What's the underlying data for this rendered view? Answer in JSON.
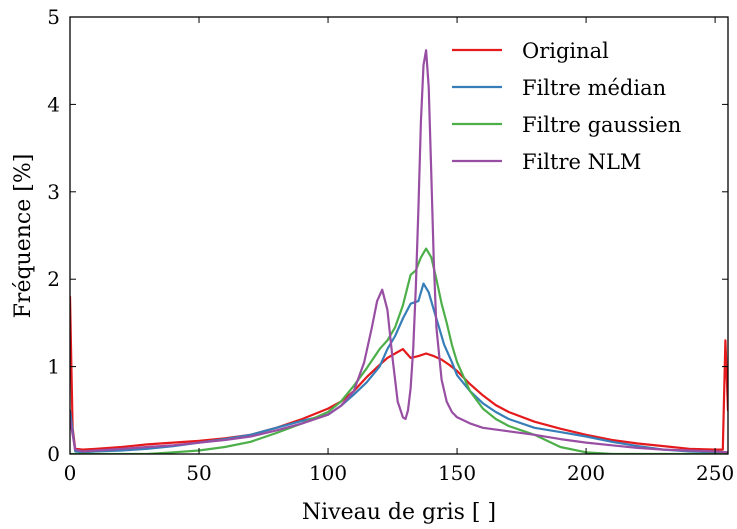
{
  "chart_data": {
    "type": "line",
    "xlabel": "Niveau de gris [ ]",
    "ylabel": "Fréquence [%]",
    "xlim": [
      0,
      255
    ],
    "ylim": [
      0,
      5
    ],
    "xticks": [
      0,
      50,
      100,
      150,
      200,
      250
    ],
    "yticks": [
      0,
      1,
      2,
      3,
      4,
      5
    ],
    "grid": false,
    "legend_position": "top-right",
    "series": [
      {
        "name": "Original",
        "color": "#e41a1c",
        "x": [
          0,
          1,
          2,
          5,
          10,
          20,
          30,
          40,
          50,
          60,
          70,
          80,
          90,
          100,
          105,
          110,
          115,
          120,
          123,
          126,
          129,
          132,
          135,
          138,
          141,
          144,
          147,
          150,
          155,
          160,
          165,
          170,
          180,
          190,
          200,
          210,
          220,
          230,
          240,
          250,
          253,
          254,
          255
        ],
        "y": [
          1.8,
          0.3,
          0.06,
          0.05,
          0.06,
          0.08,
          0.11,
          0.13,
          0.15,
          0.18,
          0.22,
          0.3,
          0.4,
          0.52,
          0.6,
          0.72,
          0.88,
          1.02,
          1.1,
          1.15,
          1.2,
          1.1,
          1.12,
          1.15,
          1.12,
          1.08,
          1.02,
          0.95,
          0.8,
          0.67,
          0.56,
          0.48,
          0.37,
          0.29,
          0.22,
          0.16,
          0.12,
          0.09,
          0.06,
          0.05,
          0.05,
          1.3,
          0.5
        ]
      },
      {
        "name": "Filtre médian",
        "color": "#377eb8",
        "x": [
          0,
          2,
          5,
          10,
          20,
          30,
          40,
          50,
          60,
          70,
          80,
          90,
          100,
          105,
          110,
          115,
          120,
          123,
          126,
          129,
          132,
          135,
          137,
          139,
          141,
          143,
          145,
          148,
          150,
          155,
          160,
          165,
          170,
          180,
          190,
          200,
          210,
          220,
          230,
          240,
          250,
          255
        ],
        "y": [
          0.5,
          0.03,
          0.02,
          0.03,
          0.04,
          0.06,
          0.09,
          0.13,
          0.17,
          0.22,
          0.3,
          0.38,
          0.45,
          0.55,
          0.68,
          0.82,
          1.0,
          1.2,
          1.35,
          1.55,
          1.72,
          1.75,
          1.95,
          1.85,
          1.65,
          1.45,
          1.25,
          1.05,
          0.9,
          0.72,
          0.58,
          0.48,
          0.4,
          0.3,
          0.25,
          0.2,
          0.14,
          0.09,
          0.05,
          0.03,
          0.02,
          0.02
        ]
      },
      {
        "name": "Filtre gaussien",
        "color": "#4daf4a",
        "x": [
          0,
          5,
          10,
          20,
          30,
          40,
          50,
          60,
          70,
          80,
          90,
          100,
          105,
          110,
          115,
          120,
          123,
          126,
          129,
          132,
          134,
          136,
          138,
          140,
          142,
          144,
          146,
          148,
          150,
          155,
          160,
          165,
          170,
          175,
          180,
          185,
          190,
          200,
          210,
          220,
          230,
          240,
          250,
          255
        ],
        "y": [
          0.0,
          0.0,
          0.0,
          0.0,
          0.0,
          0.02,
          0.04,
          0.08,
          0.14,
          0.24,
          0.35,
          0.48,
          0.6,
          0.78,
          0.98,
          1.2,
          1.3,
          1.45,
          1.7,
          2.05,
          2.1,
          2.25,
          2.35,
          2.25,
          2.0,
          1.72,
          1.5,
          1.25,
          1.05,
          0.72,
          0.52,
          0.4,
          0.32,
          0.27,
          0.22,
          0.15,
          0.08,
          0.02,
          0.0,
          0.0,
          0.0,
          0.0,
          0.0,
          0.0
        ]
      },
      {
        "name": "Filtre NLM",
        "color": "#984ea3",
        "x": [
          0,
          2,
          5,
          10,
          20,
          30,
          40,
          50,
          60,
          70,
          80,
          90,
          100,
          105,
          110,
          114,
          117,
          119,
          121,
          123,
          125,
          127,
          129,
          130,
          131,
          132,
          133,
          134,
          135,
          136,
          137,
          138,
          139,
          140,
          141,
          142,
          144,
          146,
          148,
          150,
          155,
          160,
          170,
          180,
          190,
          200,
          210,
          220,
          230,
          240,
          250,
          255
        ],
        "y": [
          0.4,
          0.05,
          0.03,
          0.04,
          0.06,
          0.08,
          0.1,
          0.13,
          0.16,
          0.2,
          0.27,
          0.35,
          0.45,
          0.55,
          0.72,
          1.05,
          1.45,
          1.75,
          1.88,
          1.65,
          1.1,
          0.6,
          0.42,
          0.4,
          0.5,
          0.75,
          1.2,
          1.9,
          2.8,
          3.8,
          4.45,
          4.62,
          4.2,
          3.2,
          2.2,
          1.45,
          0.85,
          0.6,
          0.48,
          0.42,
          0.35,
          0.3,
          0.26,
          0.22,
          0.17,
          0.13,
          0.1,
          0.07,
          0.05,
          0.04,
          0.03,
          0.02
        ]
      }
    ]
  }
}
